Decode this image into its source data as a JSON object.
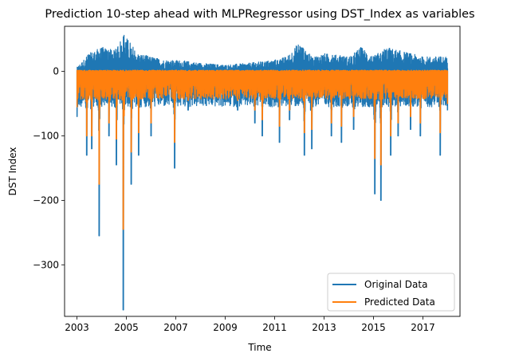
{
  "chart_data": {
    "type": "line",
    "title": "Prediction 10-step ahead with MLPRegressor using DST_Index as variables",
    "xlabel": "Time",
    "ylabel": "DST Index",
    "xlim": [
      2002.5,
      2018.5
    ],
    "ylim": [
      -380,
      70
    ],
    "x_ticks": [
      2003,
      2005,
      2007,
      2009,
      2011,
      2013,
      2015,
      2017
    ],
    "x_tick_labels": [
      "2003",
      "2005",
      "2007",
      "2009",
      "2011",
      "2013",
      "2015",
      "2017"
    ],
    "y_ticks": [
      0,
      -100,
      -200,
      -300
    ],
    "y_tick_labels": [
      "0",
      "−100",
      "−200",
      "−300"
    ],
    "grid": false,
    "legend_position": "lower-right",
    "x_start": 2003.0,
    "x_end": 2018.0,
    "series": [
      {
        "name": "Original Data",
        "color": "#1f77b4",
        "upper_envelope": [
          [
            2003.0,
            8
          ],
          [
            2003.5,
            30
          ],
          [
            2004.0,
            40
          ],
          [
            2004.5,
            35
          ],
          [
            2004.9,
            60
          ],
          [
            2005.5,
            30
          ],
          [
            2006.0,
            25
          ],
          [
            2006.5,
            20
          ],
          [
            2007.0,
            20
          ],
          [
            2008.0,
            15
          ],
          [
            2009.0,
            12
          ],
          [
            2010.0,
            15
          ],
          [
            2011.0,
            20
          ],
          [
            2011.5,
            25
          ],
          [
            2012.0,
            48
          ],
          [
            2012.5,
            25
          ],
          [
            2013.0,
            30
          ],
          [
            2014.0,
            25
          ],
          [
            2014.5,
            40
          ],
          [
            2015.0,
            25
          ],
          [
            2015.5,
            40
          ],
          [
            2016.0,
            35
          ],
          [
            2016.5,
            30
          ],
          [
            2017.0,
            25
          ],
          [
            2018.0,
            25
          ]
        ],
        "spikes_min": [
          [
            2003.0,
            -70
          ],
          [
            2003.4,
            -130
          ],
          [
            2003.6,
            -120
          ],
          [
            2003.9,
            -255
          ],
          [
            2004.3,
            -100
          ],
          [
            2004.6,
            -145
          ],
          [
            2004.88,
            -370
          ],
          [
            2005.2,
            -175
          ],
          [
            2005.5,
            -130
          ],
          [
            2006.0,
            -100
          ],
          [
            2006.95,
            -150
          ],
          [
            2007.5,
            -60
          ],
          [
            2008.2,
            -50
          ],
          [
            2009.5,
            -60
          ],
          [
            2010.2,
            -80
          ],
          [
            2010.5,
            -100
          ],
          [
            2011.2,
            -110
          ],
          [
            2011.6,
            -75
          ],
          [
            2012.2,
            -130
          ],
          [
            2012.5,
            -120
          ],
          [
            2013.3,
            -100
          ],
          [
            2013.7,
            -110
          ],
          [
            2014.2,
            -90
          ],
          [
            2015.05,
            -190
          ],
          [
            2015.3,
            -200
          ],
          [
            2015.7,
            -130
          ],
          [
            2016.0,
            -100
          ],
          [
            2016.5,
            -90
          ],
          [
            2016.9,
            -100
          ],
          [
            2017.7,
            -130
          ],
          [
            2018.0,
            -60
          ]
        ]
      },
      {
        "name": "Predicted Data",
        "color": "#ff7f0e",
        "upper_envelope": [
          [
            2003.0,
            2
          ],
          [
            2018.0,
            2
          ]
        ],
        "spikes_min": [
          [
            2003.0,
            -55
          ],
          [
            2003.4,
            -100
          ],
          [
            2003.6,
            -100
          ],
          [
            2003.9,
            -175
          ],
          [
            2004.3,
            -80
          ],
          [
            2004.6,
            -105
          ],
          [
            2004.88,
            -245
          ],
          [
            2005.2,
            -125
          ],
          [
            2005.5,
            -95
          ],
          [
            2006.0,
            -80
          ],
          [
            2006.95,
            -110
          ],
          [
            2007.5,
            -45
          ],
          [
            2008.2,
            -40
          ],
          [
            2009.5,
            -45
          ],
          [
            2010.2,
            -60
          ],
          [
            2010.5,
            -75
          ],
          [
            2011.2,
            -85
          ],
          [
            2011.6,
            -60
          ],
          [
            2012.2,
            -95
          ],
          [
            2012.5,
            -90
          ],
          [
            2013.3,
            -80
          ],
          [
            2013.7,
            -85
          ],
          [
            2014.2,
            -70
          ],
          [
            2015.05,
            -135
          ],
          [
            2015.3,
            -145
          ],
          [
            2015.7,
            -100
          ],
          [
            2016.0,
            -80
          ],
          [
            2016.5,
            -70
          ],
          [
            2016.9,
            -80
          ],
          [
            2017.7,
            -95
          ],
          [
            2018.0,
            -50
          ]
        ]
      }
    ]
  }
}
